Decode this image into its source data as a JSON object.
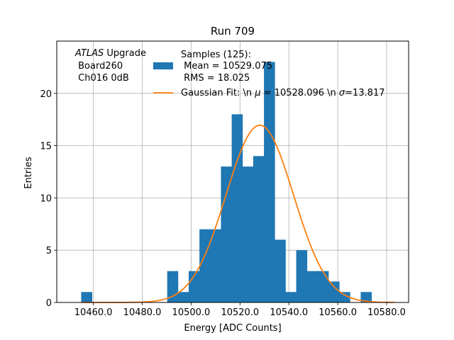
{
  "chart_data": {
    "type": "bar",
    "title": "Run 709",
    "xlabel": "Energy [ADC Counts]",
    "ylabel": "Entries",
    "xlim": [
      10445,
      10589
    ],
    "ylim": [
      0,
      25
    ],
    "grid": true,
    "legend_position": "top-right",
    "xticks": [
      10460,
      10480,
      10500,
      10520,
      10540,
      10560,
      10580
    ],
    "xtick_labels": [
      "10460.0",
      "10480.0",
      "10500.0",
      "10520.0",
      "10540.0",
      "10560.0",
      "10580.0"
    ],
    "yticks": [
      0,
      5,
      10,
      15,
      20
    ],
    "ytick_labels": [
      "0",
      "5",
      "10",
      "15",
      "20"
    ],
    "annotation": {
      "italic_part": "ATLAS",
      "line1_rest": " Upgrade",
      "line2": " Board260",
      "line3": " Ch016 0dB"
    },
    "histogram": {
      "name_lines": [
        "Samples (125):",
        " Mean = 10529.075",
        " RMS = 18.025"
      ],
      "color": "#1f77b4",
      "bin_width": 4.4,
      "bins": [
        {
          "x": 10455.0,
          "count": 1
        },
        {
          "x": 10459.4,
          "count": 0
        },
        {
          "x": 10463.8,
          "count": 0
        },
        {
          "x": 10468.2,
          "count": 0
        },
        {
          "x": 10472.6,
          "count": 0
        },
        {
          "x": 10477.0,
          "count": 0
        },
        {
          "x": 10481.4,
          "count": 0
        },
        {
          "x": 10485.8,
          "count": 0
        },
        {
          "x": 10490.2,
          "count": 3
        },
        {
          "x": 10494.6,
          "count": 1
        },
        {
          "x": 10499.0,
          "count": 3
        },
        {
          "x": 10503.4,
          "count": 7
        },
        {
          "x": 10507.8,
          "count": 7
        },
        {
          "x": 10512.2,
          "count": 13
        },
        {
          "x": 10516.6,
          "count": 18
        },
        {
          "x": 10521.0,
          "count": 13
        },
        {
          "x": 10525.4,
          "count": 14
        },
        {
          "x": 10529.8,
          "count": 23
        },
        {
          "x": 10534.2,
          "count": 6
        },
        {
          "x": 10538.6,
          "count": 1
        },
        {
          "x": 10543.0,
          "count": 5
        },
        {
          "x": 10547.4,
          "count": 3
        },
        {
          "x": 10551.8,
          "count": 3
        },
        {
          "x": 10556.2,
          "count": 2
        },
        {
          "x": 10560.6,
          "count": 1
        },
        {
          "x": 10565.0,
          "count": 0
        },
        {
          "x": 10569.4,
          "count": 1
        }
      ]
    },
    "fit": {
      "label": "Gaussian Fit: \\n μ = 10528.096 \\n σ=13.817",
      "label_prefix": "Gaussian Fit: \\n ",
      "label_mu": "μ",
      "label_mid": " = 10528.096 \\n ",
      "label_sigma": "σ",
      "label_suffix": "=13.817",
      "color": "#ff7f0e",
      "mu": 10528.096,
      "sigma": 13.817,
      "amplitude": 16.95,
      "x_range": [
        10455.0,
        10583.0
      ]
    }
  }
}
